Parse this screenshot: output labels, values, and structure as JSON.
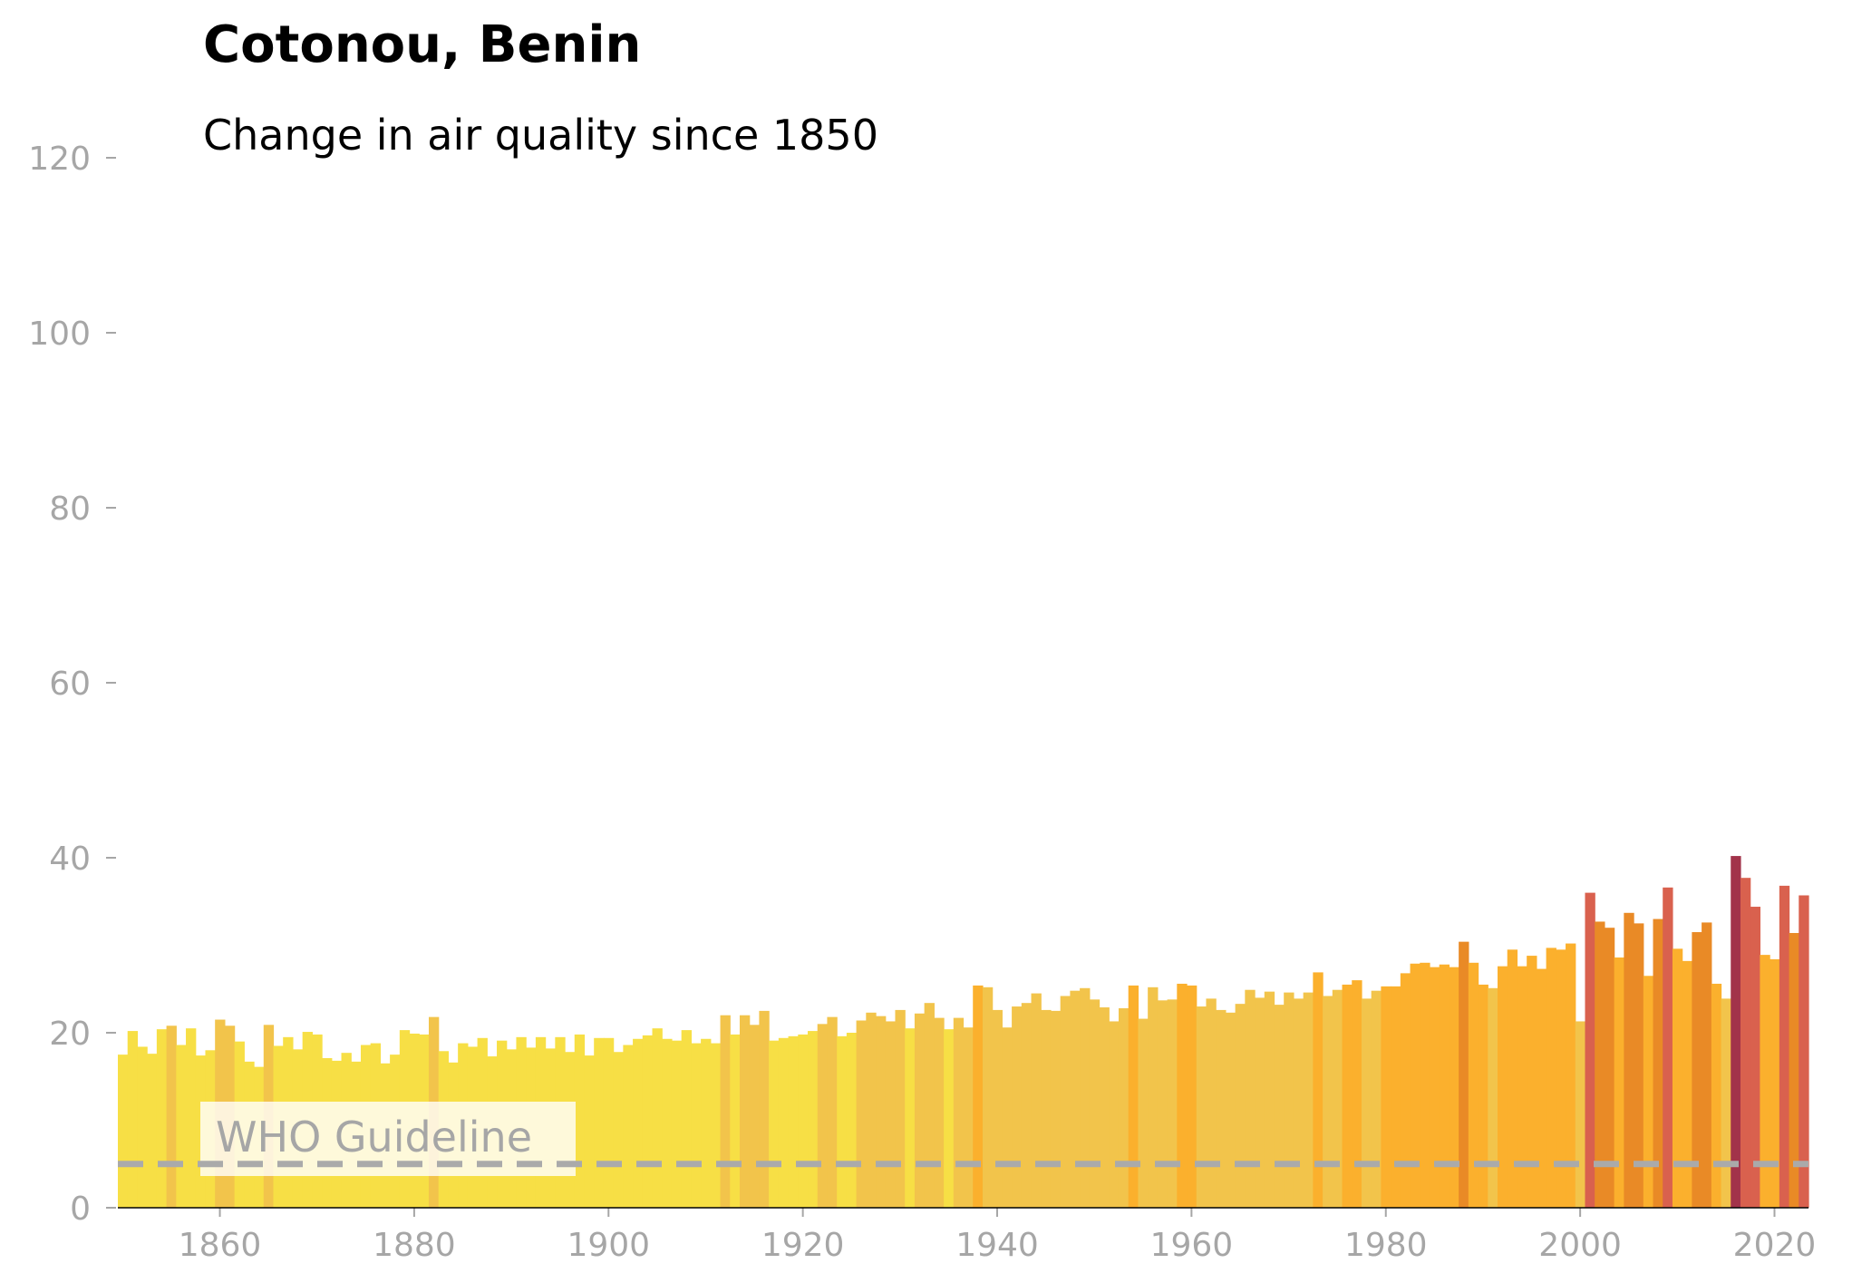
{
  "chart_data": {
    "type": "bar",
    "title": "Cotonou, Benin",
    "subtitle": "Change in air quality since 1850",
    "xlabel": "",
    "ylabel": "",
    "x_start": 1850,
    "ylim": [
      0,
      120
    ],
    "yticks": [
      0,
      20,
      40,
      60,
      80,
      100,
      120
    ],
    "xticks": [
      1860,
      1880,
      1900,
      1920,
      1940,
      1960,
      1980,
      2000,
      2020
    ],
    "grid": false,
    "values": [
      17.5,
      20.2,
      18.4,
      17.6,
      20.4,
      20.8,
      18.6,
      20.5,
      17.4,
      18.0,
      21.5,
      20.8,
      19.0,
      16.7,
      16.1,
      20.9,
      18.5,
      19.5,
      18.1,
      20.1,
      19.8,
      17.1,
      16.8,
      17.7,
      16.7,
      18.6,
      18.8,
      16.5,
      17.5,
      20.3,
      19.9,
      19.8,
      21.8,
      17.9,
      16.6,
      18.8,
      18.4,
      19.4,
      17.3,
      19.1,
      18.1,
      19.5,
      18.3,
      19.5,
      18.2,
      19.5,
      17.8,
      19.8,
      17.4,
      19.4,
      19.4,
      17.8,
      18.6,
      19.3,
      19.7,
      20.5,
      19.3,
      19.1,
      20.3,
      18.8,
      19.3,
      18.8,
      22.0,
      19.8,
      22.0,
      20.9,
      22.5,
      19.1,
      19.4,
      19.6,
      19.8,
      20.2,
      21.0,
      21.8,
      19.6,
      20.0,
      21.4,
      22.3,
      21.9,
      21.3,
      22.6,
      20.5,
      22.2,
      23.4,
      21.7,
      20.4,
      21.7,
      20.6,
      25.4,
      25.2,
      22.6,
      20.6,
      23.0,
      23.4,
      24.5,
      22.6,
      22.5,
      24.2,
      24.8,
      25.1,
      23.8,
      22.9,
      21.3,
      22.8,
      25.4,
      21.6,
      25.2,
      23.7,
      23.8,
      25.6,
      25.4,
      23.0,
      23.9,
      22.6,
      22.3,
      23.3,
      24.9,
      24.0,
      24.7,
      23.2,
      24.6,
      23.9,
      24.6,
      26.9,
      24.2,
      24.9,
      25.5,
      26.0,
      23.9,
      24.8,
      25.3,
      25.3,
      26.8,
      27.9,
      28.0,
      27.5,
      27.8,
      27.5,
      30.4,
      28.0,
      25.5,
      25.1,
      27.6,
      29.5,
      27.6,
      28.8,
      27.3,
      29.7,
      29.5,
      30.2,
      21.3,
      36.0,
      32.7,
      32.0,
      28.6,
      33.7,
      32.5,
      26.5,
      33.0,
      36.6,
      29.6,
      28.2,
      31.5,
      32.6,
      25.6,
      23.9,
      40.2,
      37.7,
      34.4,
      28.9,
      28.4,
      36.8,
      31.4,
      35.7
    ],
    "guideline": {
      "label": "WHO Guideline",
      "value": 5
    },
    "color_scale": [
      "#f7df45",
      "#f2c44b",
      "#fbb02d",
      "#e98a26",
      "#d9614e",
      "#a2334a"
    ]
  }
}
